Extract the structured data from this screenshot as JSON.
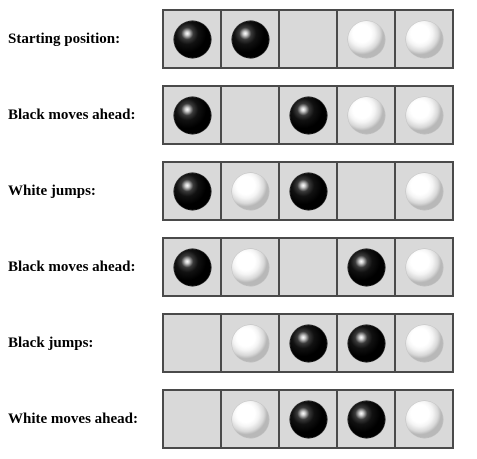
{
  "colors": {
    "board_fill": "#d9d9d9",
    "board_border": "#4a4a4a",
    "black_piece": "#000000",
    "white_piece": "#ffffff"
  },
  "steps": [
    {
      "label": "Starting position:",
      "cells": [
        "black",
        "black",
        "empty",
        "white",
        "white"
      ]
    },
    {
      "label": "Black moves ahead:",
      "cells": [
        "black",
        "empty",
        "black",
        "white",
        "white"
      ]
    },
    {
      "label": "White jumps:",
      "cells": [
        "black",
        "white",
        "black",
        "empty",
        "white"
      ]
    },
    {
      "label": "Black moves ahead:",
      "cells": [
        "black",
        "white",
        "empty",
        "black",
        "white"
      ]
    },
    {
      "label": "Black jumps:",
      "cells": [
        "empty",
        "white",
        "black",
        "black",
        "white"
      ]
    },
    {
      "label": "White moves ahead:",
      "cells": [
        "empty",
        "white",
        "black",
        "black",
        "white"
      ]
    }
  ]
}
